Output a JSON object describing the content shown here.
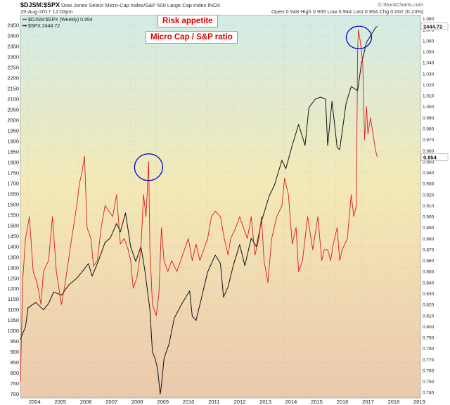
{
  "header": {
    "ticker": "$DJSM:$SPX",
    "description": "Dow Jones Select Micro-Cap Index/S&P 500 Large Cap Index",
    "index_tag": "INDX",
    "date": "25-Aug-2017 12:03pm",
    "quote": "Open 0.948  High 0.955  Low 0.944  Last 0.954  Chg 0.002 (0.23%)",
    "watermark": "© StockCharts.com"
  },
  "colors": {
    "ratio_line": "#e11919",
    "spx_line": "#111111",
    "bg_top": "#d2ece6",
    "bg_mid": "#f4e9b6",
    "bg_bottom": "#ecc9ad",
    "circle": "#0000cc"
  },
  "chart_data": {
    "type": "line",
    "title": "$DJSM:$SPX",
    "legend": [
      {
        "name": "$DJSM:$SPX (Weekly) 0.954",
        "color": "#e11919"
      },
      {
        "name": "$SPX 2444.72",
        "color": "#111111"
      }
    ],
    "legend_position": "top-left",
    "annotations": [
      "Risk appetite",
      "Micro Cap / S&P ratio"
    ],
    "x_ticks": [
      "2004",
      "2005",
      "2006",
      "2007",
      "2008",
      "2009",
      "2010",
      "2011",
      "2012",
      "2013",
      "2014",
      "2015",
      "2016",
      "2017",
      "2018",
      "2019"
    ],
    "xlim": [
      2003.7,
      2019.3
    ],
    "left_axis": {
      "label": "",
      "ticks": [
        700,
        750,
        800,
        850,
        900,
        950,
        1000,
        1050,
        1100,
        1150,
        1200,
        1250,
        1300,
        1350,
        1400,
        1450,
        1500,
        1550,
        1600,
        1650,
        1700,
        1750,
        1800,
        1850,
        1900,
        1950,
        2000,
        2050,
        2100,
        2150,
        2200,
        2250,
        2300,
        2350,
        2400,
        2450
      ],
      "ylim": [
        682,
        2497
      ]
    },
    "right_axis": {
      "label": "",
      "ticks": [
        0.74,
        0.75,
        0.76,
        0.77,
        0.78,
        0.79,
        0.8,
        0.81,
        0.82,
        0.83,
        0.84,
        0.85,
        0.86,
        0.87,
        0.88,
        0.89,
        0.9,
        0.91,
        0.92,
        0.93,
        0.94,
        0.95,
        0.96,
        0.97,
        0.98,
        0.99,
        1.0,
        1.01,
        1.02,
        1.03,
        1.04,
        1.05,
        1.06,
        1.07,
        1.08
      ],
      "ylim": [
        0.735,
        1.083
      ]
    },
    "last_values": {
      "spx": "2444.72",
      "ratio": "0.954"
    },
    "series": [
      {
        "name": "$SPX",
        "axis": "left",
        "points": [
          [
            2003.7,
            960
          ],
          [
            2003.9,
            1020
          ],
          [
            2004.0,
            1110
          ],
          [
            2004.3,
            1135
          ],
          [
            2004.6,
            1100
          ],
          [
            2004.8,
            1130
          ],
          [
            2005.0,
            1185
          ],
          [
            2005.3,
            1170
          ],
          [
            2005.6,
            1220
          ],
          [
            2005.9,
            1250
          ],
          [
            2006.1,
            1280
          ],
          [
            2006.35,
            1320
          ],
          [
            2006.5,
            1260
          ],
          [
            2006.75,
            1335
          ],
          [
            2007.0,
            1420
          ],
          [
            2007.2,
            1440
          ],
          [
            2007.45,
            1510
          ],
          [
            2007.6,
            1470
          ],
          [
            2007.8,
            1560
          ],
          [
            2008.0,
            1400
          ],
          [
            2008.2,
            1330
          ],
          [
            2008.4,
            1400
          ],
          [
            2008.55,
            1290
          ],
          [
            2008.75,
            1100
          ],
          [
            2008.85,
            900
          ],
          [
            2008.95,
            870
          ],
          [
            2009.05,
            820
          ],
          [
            2009.15,
            700
          ],
          [
            2009.2,
            740
          ],
          [
            2009.3,
            870
          ],
          [
            2009.5,
            940
          ],
          [
            2009.7,
            1060
          ],
          [
            2010.0,
            1130
          ],
          [
            2010.3,
            1190
          ],
          [
            2010.4,
            1070
          ],
          [
            2010.55,
            1050
          ],
          [
            2010.75,
            1150
          ],
          [
            2011.0,
            1280
          ],
          [
            2011.3,
            1360
          ],
          [
            2011.5,
            1320
          ],
          [
            2011.62,
            1160
          ],
          [
            2011.8,
            1210
          ],
          [
            2012.0,
            1310
          ],
          [
            2012.25,
            1410
          ],
          [
            2012.45,
            1310
          ],
          [
            2012.7,
            1440
          ],
          [
            2012.9,
            1400
          ],
          [
            2013.1,
            1520
          ],
          [
            2013.4,
            1640
          ],
          [
            2013.6,
            1690
          ],
          [
            2013.9,
            1810
          ],
          [
            2014.05,
            1770
          ],
          [
            2014.3,
            1880
          ],
          [
            2014.55,
            1980
          ],
          [
            2014.8,
            1880
          ],
          [
            2014.95,
            2060
          ],
          [
            2015.2,
            2100
          ],
          [
            2015.4,
            2110
          ],
          [
            2015.6,
            2100
          ],
          [
            2015.68,
            1880
          ],
          [
            2015.85,
            2090
          ],
          [
            2016.05,
            1870
          ],
          [
            2016.15,
            1860
          ],
          [
            2016.4,
            2080
          ],
          [
            2016.6,
            2160
          ],
          [
            2016.85,
            2140
          ],
          [
            2017.0,
            2270
          ],
          [
            2017.2,
            2370
          ],
          [
            2017.45,
            2420
          ],
          [
            2017.55,
            2440
          ],
          [
            2017.62,
            2445
          ]
        ]
      },
      {
        "name": "$DJSM:$SPX",
        "axis": "right",
        "points": [
          [
            2003.7,
            0.75
          ],
          [
            2003.75,
            0.8
          ],
          [
            2003.8,
            0.845
          ],
          [
            2003.9,
            0.88
          ],
          [
            2004.05,
            0.9
          ],
          [
            2004.2,
            0.85
          ],
          [
            2004.35,
            0.84
          ],
          [
            2004.5,
            0.82
          ],
          [
            2004.6,
            0.85
          ],
          [
            2004.8,
            0.86
          ],
          [
            2004.95,
            0.9
          ],
          [
            2005.1,
            0.85
          ],
          [
            2005.3,
            0.82
          ],
          [
            2005.45,
            0.84
          ],
          [
            2005.7,
            0.88
          ],
          [
            2005.9,
            0.91
          ],
          [
            2006.0,
            0.93
          ],
          [
            2006.1,
            0.94
          ],
          [
            2006.2,
            0.955
          ],
          [
            2006.3,
            0.89
          ],
          [
            2006.45,
            0.88
          ],
          [
            2006.55,
            0.855
          ],
          [
            2006.7,
            0.86
          ],
          [
            2006.85,
            0.89
          ],
          [
            2007.0,
            0.91
          ],
          [
            2007.15,
            0.905
          ],
          [
            2007.3,
            0.9
          ],
          [
            2007.45,
            0.92
          ],
          [
            2007.6,
            0.875
          ],
          [
            2007.75,
            0.88
          ],
          [
            2007.9,
            0.87
          ],
          [
            2008.0,
            0.86
          ],
          [
            2008.1,
            0.835
          ],
          [
            2008.25,
            0.845
          ],
          [
            2008.4,
            0.87
          ],
          [
            2008.5,
            0.92
          ],
          [
            2008.6,
            0.9
          ],
          [
            2008.7,
            0.95
          ],
          [
            2008.75,
            0.87
          ],
          [
            2008.85,
            0.82
          ],
          [
            2009.0,
            0.81
          ],
          [
            2009.1,
            0.83
          ],
          [
            2009.2,
            0.89
          ],
          [
            2009.3,
            0.86
          ],
          [
            2009.45,
            0.85
          ],
          [
            2009.6,
            0.86
          ],
          [
            2009.8,
            0.85
          ],
          [
            2009.95,
            0.86
          ],
          [
            2010.1,
            0.87
          ],
          [
            2010.25,
            0.88
          ],
          [
            2010.4,
            0.86
          ],
          [
            2010.55,
            0.875
          ],
          [
            2010.7,
            0.86
          ],
          [
            2010.85,
            0.87
          ],
          [
            2011.0,
            0.88
          ],
          [
            2011.15,
            0.9
          ],
          [
            2011.3,
            0.905
          ],
          [
            2011.5,
            0.9
          ],
          [
            2011.65,
            0.88
          ],
          [
            2011.8,
            0.865
          ],
          [
            2011.9,
            0.88
          ],
          [
            2012.1,
            0.89
          ],
          [
            2012.25,
            0.9
          ],
          [
            2012.4,
            0.89
          ],
          [
            2012.55,
            0.88
          ],
          [
            2012.7,
            0.9
          ],
          [
            2012.85,
            0.865
          ],
          [
            2013.0,
            0.88
          ],
          [
            2013.1,
            0.9
          ],
          [
            2013.2,
            0.86
          ],
          [
            2013.35,
            0.84
          ],
          [
            2013.5,
            0.88
          ],
          [
            2013.7,
            0.9
          ],
          [
            2013.9,
            0.91
          ],
          [
            2014.0,
            0.935
          ],
          [
            2014.15,
            0.92
          ],
          [
            2014.3,
            0.875
          ],
          [
            2014.45,
            0.89
          ],
          [
            2014.55,
            0.85
          ],
          [
            2014.7,
            0.86
          ],
          [
            2014.8,
            0.88
          ],
          [
            2014.9,
            0.9
          ],
          [
            2015.1,
            0.87
          ],
          [
            2015.3,
            0.9
          ],
          [
            2015.45,
            0.86
          ],
          [
            2015.55,
            0.87
          ],
          [
            2015.68,
            0.87
          ],
          [
            2015.8,
            0.86
          ],
          [
            2015.9,
            0.875
          ],
          [
            2016.05,
            0.89
          ],
          [
            2016.15,
            0.86
          ],
          [
            2016.25,
            0.87
          ],
          [
            2016.45,
            0.88
          ],
          [
            2016.6,
            0.92
          ],
          [
            2016.7,
            0.9
          ],
          [
            2016.8,
            0.91
          ],
          [
            2016.85,
            1.05
          ],
          [
            2016.88,
            1.07
          ],
          [
            2016.95,
            1.06
          ],
          [
            2017.05,
            1.04
          ],
          [
            2017.12,
            0.97
          ],
          [
            2017.2,
            1.0
          ],
          [
            2017.25,
            0.975
          ],
          [
            2017.35,
            0.99
          ],
          [
            2017.45,
            0.975
          ],
          [
            2017.55,
            0.96
          ],
          [
            2017.62,
            0.954
          ]
        ]
      }
    ]
  }
}
